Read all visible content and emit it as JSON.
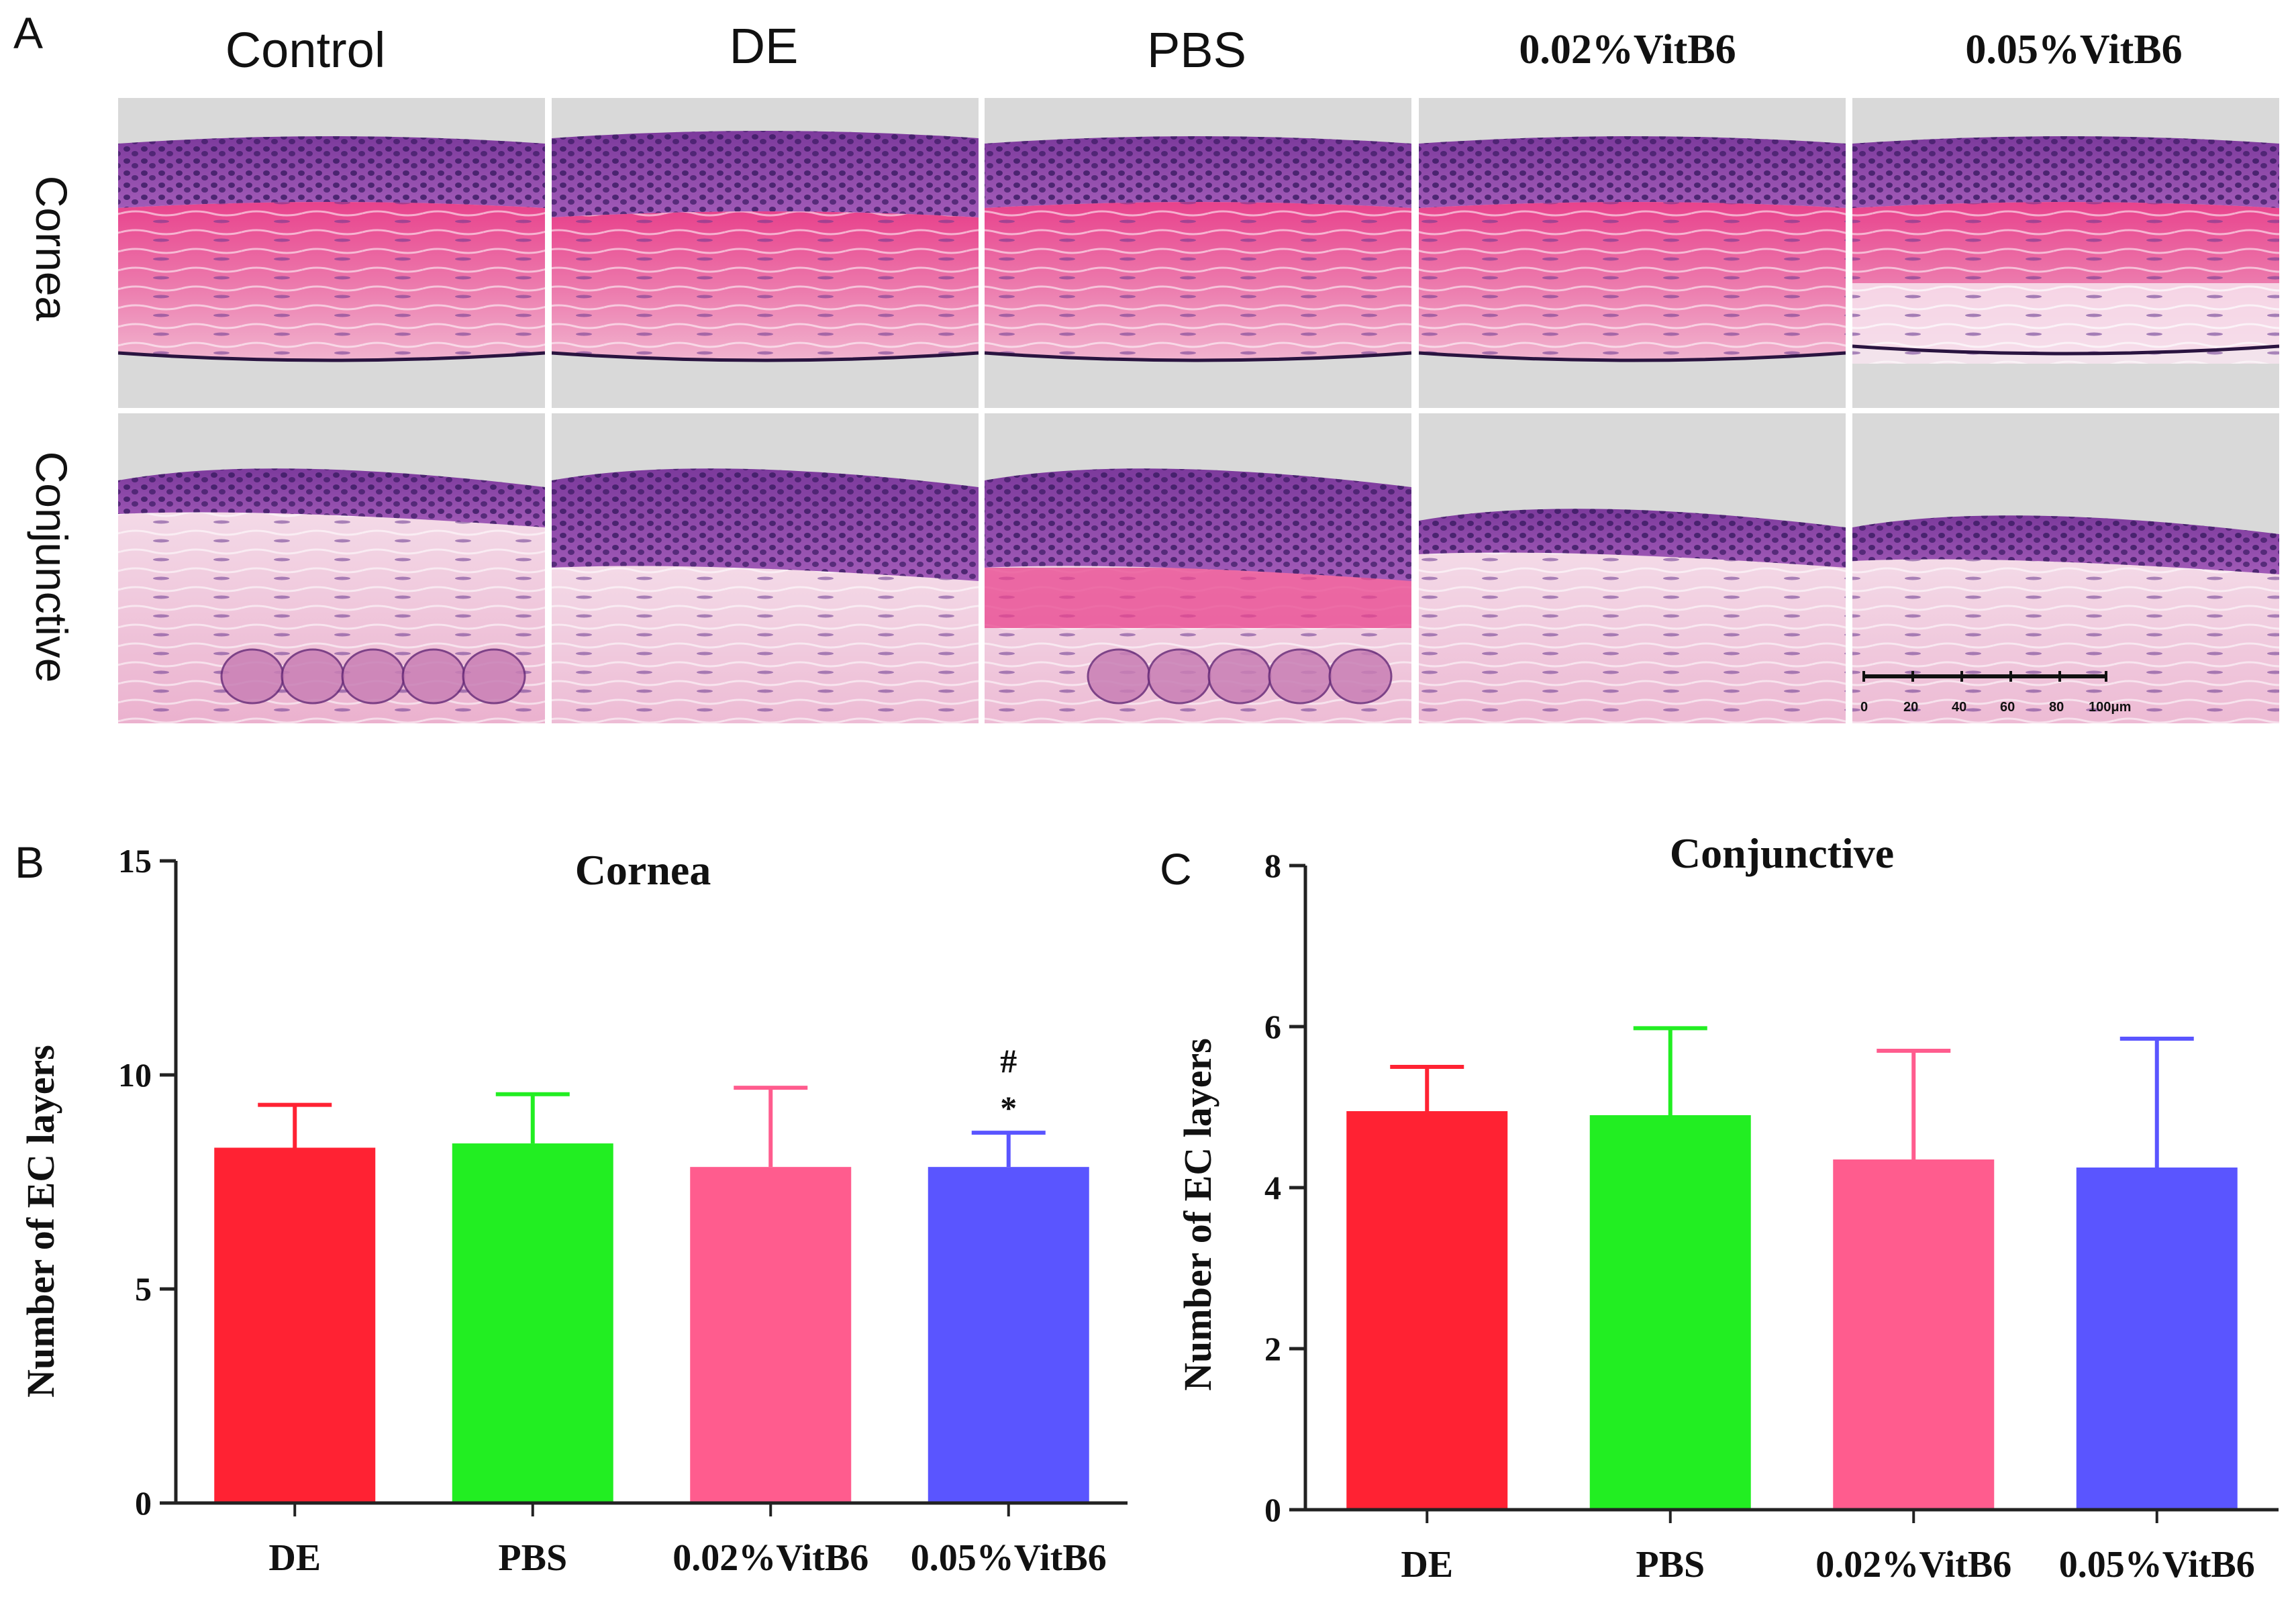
{
  "panel_a": {
    "label": "A",
    "column_headers": [
      "Control",
      "DE",
      "PBS",
      "0.02%VitB6",
      "0.05%VitB6"
    ],
    "row_labels": [
      "Cornea",
      "Conjunctive"
    ],
    "scale_bar": {
      "ticks": [
        "0",
        "20",
        "40",
        "60",
        "80",
        "100μm"
      ]
    }
  },
  "colors": {
    "DE": "#ff2233",
    "PBS": "#22ee22",
    "0.02%VitB6": "#ff5c8e",
    "0.05%VitB6": "#5a55ff",
    "stain_pink": "#e8609a",
    "stain_purple": "#5a2d8a",
    "background_gray": "#d9d9d9"
  },
  "chart_data": [
    {
      "panel": "B",
      "type": "bar",
      "title": "Cornea",
      "ylabel": "Number of EC layers",
      "xlabel": "",
      "categories": [
        "DE",
        "PBS",
        "0.02%VitB6",
        "0.05%VitB6"
      ],
      "values": [
        8.3,
        8.4,
        7.85,
        7.85
      ],
      "error_upper": [
        9.3,
        9.55,
        9.7,
        8.65
      ],
      "ylim": [
        0,
        15
      ],
      "yticks": [
        0,
        5,
        10,
        15
      ],
      "annotations": [
        {
          "category": "0.05%VitB6",
          "symbols": [
            "*",
            "#"
          ]
        }
      ],
      "grid": false
    },
    {
      "panel": "C",
      "type": "bar",
      "title": "Conjunctive",
      "ylabel": "Number of EC layers",
      "xlabel": "",
      "categories": [
        "DE",
        "PBS",
        "0.02%VitB6",
        "0.05%VitB6"
      ],
      "values": [
        4.95,
        4.9,
        4.35,
        4.25
      ],
      "error_upper": [
        5.5,
        5.98,
        5.7,
        5.85
      ],
      "ylim": [
        0,
        8
      ],
      "yticks": [
        0,
        2,
        4,
        6,
        8
      ],
      "annotations": [],
      "grid": false
    }
  ]
}
